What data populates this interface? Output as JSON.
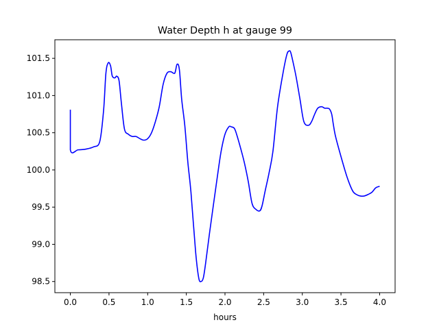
{
  "chart_data": {
    "type": "line",
    "title": "Water Depth h at gauge 99",
    "xlabel": "hours",
    "ylabel": "",
    "xlim": [
      -0.2,
      4.2
    ],
    "ylim": [
      98.35,
      101.75
    ],
    "xticks": [
      0.0,
      0.5,
      1.0,
      1.5,
      2.0,
      2.5,
      3.0,
      3.5,
      4.0
    ],
    "xtick_labels": [
      "0.0",
      "0.5",
      "1.0",
      "1.5",
      "2.0",
      "2.5",
      "3.0",
      "3.5",
      "4.0"
    ],
    "yticks": [
      98.5,
      99.0,
      99.5,
      100.0,
      100.5,
      101.0,
      101.5
    ],
    "ytick_labels": [
      "98.5",
      "99.0",
      "99.5",
      "100.0",
      "100.5",
      "101.0",
      "101.5"
    ],
    "grid": false,
    "colors": {
      "line": "#0000ff",
      "axes": "#000000",
      "background": "#ffffff"
    },
    "series": [
      {
        "x": [
          0.0,
          0.0,
          0.1,
          0.2,
          0.3,
          0.38,
          0.43,
          0.46,
          0.49,
          0.52,
          0.54,
          0.56,
          0.58,
          0.6,
          0.63,
          0.66,
          0.7,
          0.75,
          0.8,
          0.85,
          0.9,
          0.95,
          1.0,
          1.05,
          1.1,
          1.15,
          1.2,
          1.25,
          1.3,
          1.35,
          1.38,
          1.41,
          1.44,
          1.48,
          1.52,
          1.56,
          1.62,
          1.66,
          1.69,
          1.72,
          1.75,
          1.8,
          1.9,
          1.95,
          2.0,
          2.05,
          2.08,
          2.12,
          2.15,
          2.2,
          2.25,
          2.3,
          2.35,
          2.4,
          2.45,
          2.48,
          2.52,
          2.57,
          2.62,
          2.68,
          2.75,
          2.8,
          2.83,
          2.85,
          2.88,
          2.92,
          2.97,
          3.02,
          3.08,
          3.12,
          3.16,
          3.2,
          3.25,
          3.29,
          3.32,
          3.35,
          3.38,
          3.4,
          3.43,
          3.5,
          3.58,
          3.65,
          3.7,
          3.75,
          3.8,
          3.85,
          3.9,
          3.95,
          4.0
        ],
        "y": [
          100.81,
          100.27,
          100.27,
          100.28,
          100.31,
          100.38,
          100.8,
          101.3,
          101.44,
          101.4,
          101.27,
          101.24,
          101.24,
          101.26,
          101.2,
          100.9,
          100.55,
          100.48,
          100.45,
          100.45,
          100.42,
          100.4,
          100.42,
          100.5,
          100.65,
          100.85,
          101.15,
          101.3,
          101.32,
          101.3,
          101.42,
          101.35,
          100.95,
          100.6,
          100.1,
          99.7,
          98.9,
          98.55,
          98.5,
          98.55,
          98.75,
          99.15,
          99.9,
          100.25,
          100.48,
          100.58,
          100.58,
          100.56,
          100.48,
          100.3,
          100.1,
          99.85,
          99.55,
          99.47,
          99.45,
          99.52,
          99.72,
          99.96,
          100.25,
          100.85,
          101.3,
          101.55,
          101.6,
          101.58,
          101.45,
          101.25,
          100.95,
          100.65,
          100.6,
          100.65,
          100.75,
          100.83,
          100.85,
          100.83,
          100.83,
          100.82,
          100.75,
          100.62,
          100.45,
          100.18,
          99.9,
          99.72,
          99.67,
          99.65,
          99.65,
          99.67,
          99.7,
          99.76,
          99.78
        ]
      }
    ]
  }
}
